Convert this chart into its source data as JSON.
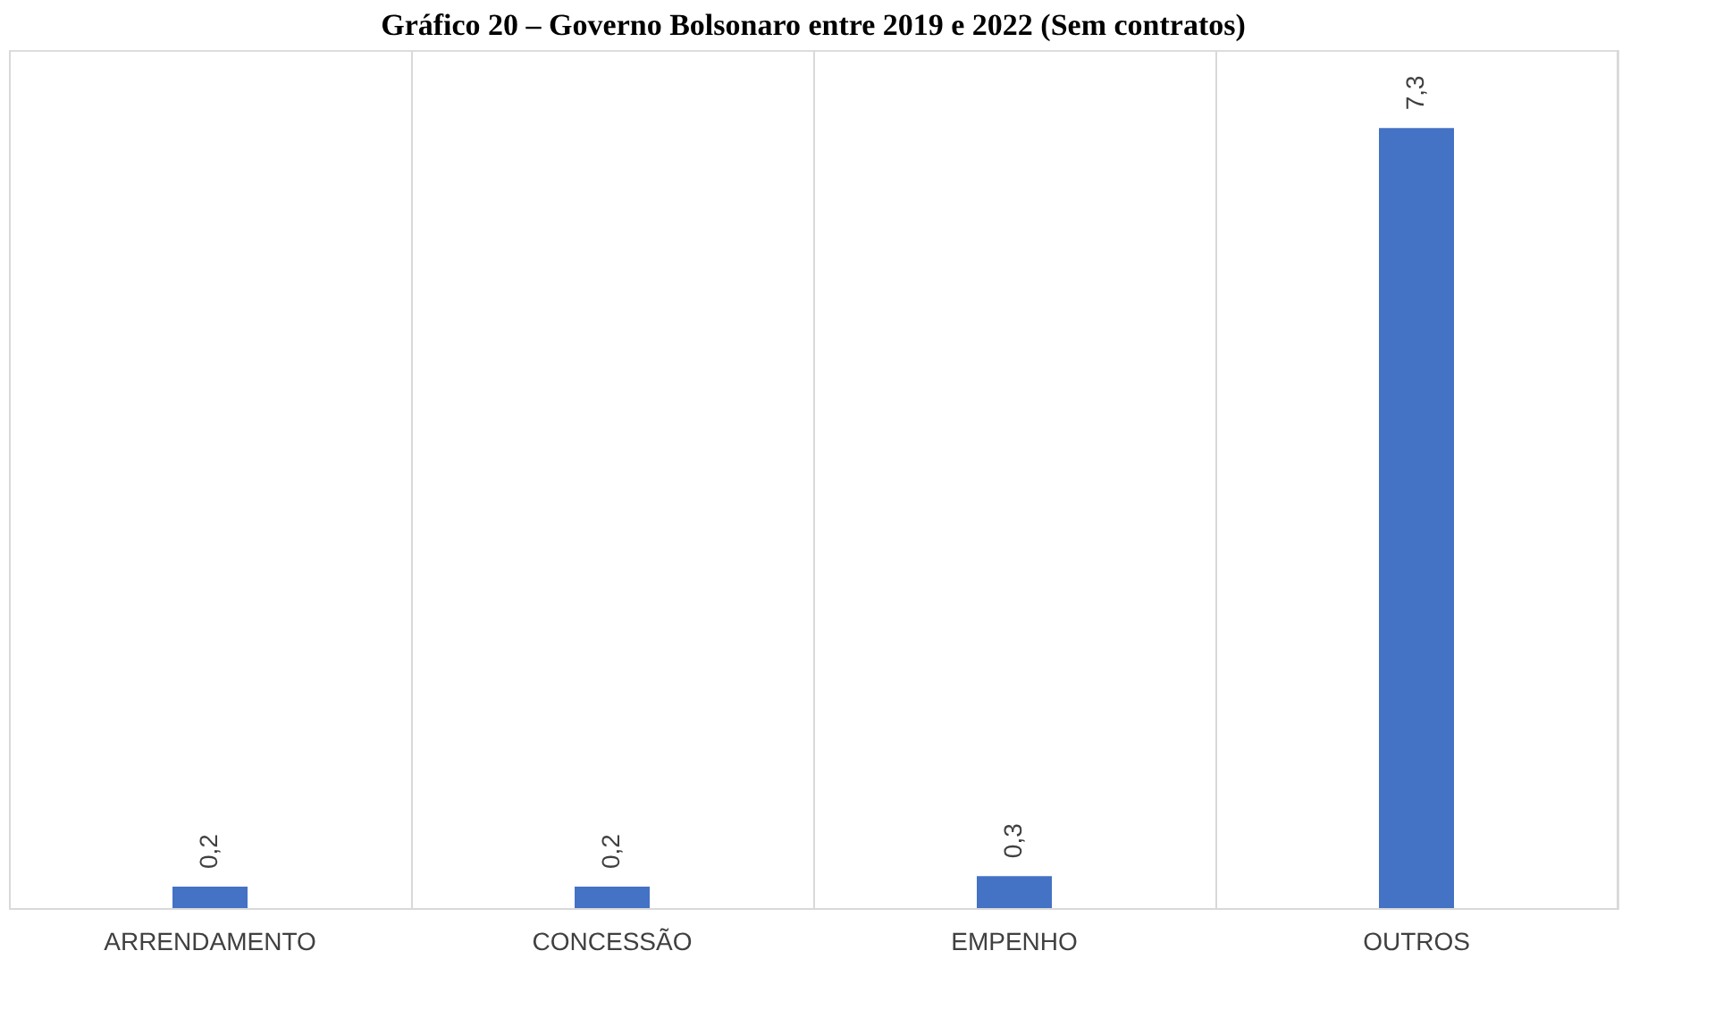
{
  "chart_data": {
    "type": "bar",
    "title": "Gráfico 20 – Governo Bolsonaro entre 2019 e 2022 (Sem contratos)",
    "categories": [
      "ARRENDAMENTO",
      "CONCESSÃO",
      "EMPENHO",
      "OUTROS"
    ],
    "values": [
      0.2,
      0.2,
      0.3,
      7.3
    ],
    "value_labels": [
      "0,2",
      "0,2",
      "0,3",
      "7,3"
    ],
    "color": "#4472c4",
    "grid": "x"
  }
}
